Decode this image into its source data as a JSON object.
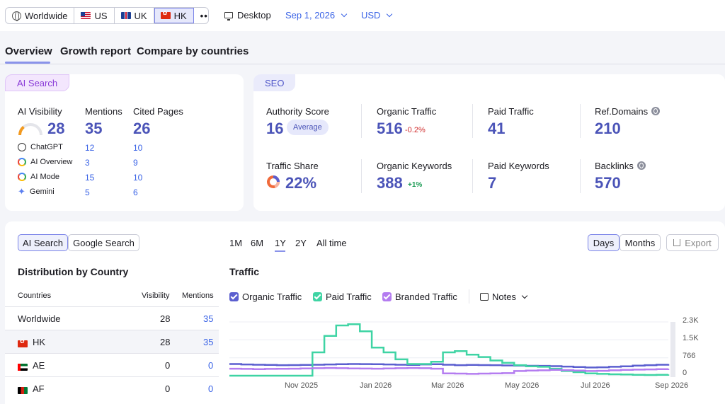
{
  "topbar": {
    "regions": [
      {
        "label": "Worldwide",
        "icon": "globe-icon"
      },
      {
        "label": "US",
        "icon": "us-flag-icon"
      },
      {
        "label": "UK",
        "icon": "uk-flag-icon"
      },
      {
        "label": "HK",
        "icon": "hk-flag-icon",
        "active": true
      }
    ],
    "more_label": "•••",
    "device_label": "Desktop",
    "date_label": "Sep 1, 2026",
    "currency_label": "USD"
  },
  "tabs": [
    "Overview",
    "Growth report",
    "Compare by countries"
  ],
  "ai_card": {
    "pill": "AI Search",
    "headers": {
      "visibility": "AI Visibility",
      "mentions": "Mentions",
      "cited": "Cited Pages"
    },
    "totals": {
      "visibility": "28",
      "mentions": "35",
      "cited": "26"
    },
    "visibility_gauge_fraction": 0.28,
    "rows": [
      {
        "name": "ChatGPT",
        "mentions": "12",
        "cited": "10",
        "icon": "chatgpt-icon"
      },
      {
        "name": "AI Overview",
        "mentions": "3",
        "cited": "9",
        "icon": "google-icon"
      },
      {
        "name": "AI Mode",
        "mentions": "15",
        "cited": "10",
        "icon": "google-icon"
      },
      {
        "name": "Gemini",
        "mentions": "5",
        "cited": "6",
        "icon": "gemini-icon"
      }
    ]
  },
  "seo_card": {
    "pill": "SEO",
    "authority": {
      "label": "Authority Score",
      "value": "16",
      "badge": "Average"
    },
    "organic_traffic": {
      "label": "Organic Traffic",
      "value": "516",
      "delta": "-0.2%"
    },
    "paid_traffic": {
      "label": "Paid Traffic",
      "value": "41"
    },
    "ref_domains": {
      "label": "Ref.Domains",
      "value": "210"
    },
    "traffic_share": {
      "label": "Traffic Share",
      "value": "22%"
    },
    "organic_keywords": {
      "label": "Organic Keywords",
      "value": "388",
      "delta": "+1%"
    },
    "paid_keywords": {
      "label": "Paid Keywords",
      "value": "7"
    },
    "backlinks": {
      "label": "Backlinks",
      "value": "570"
    }
  },
  "bottom": {
    "toggle": [
      "AI Search",
      "Google Search"
    ],
    "ranges": [
      "1M",
      "6M",
      "1Y",
      "2Y",
      "All time"
    ],
    "active_range": "1Y",
    "granularity": [
      "Days",
      "Months"
    ],
    "export_label": "Export",
    "distribution": {
      "title": "Distribution by Country",
      "headers": {
        "country": "Countries",
        "visibility": "Visibility",
        "mentions": "Mentions"
      },
      "rows": [
        {
          "country": "Worldwide",
          "visibility": "28",
          "mentions": "35",
          "flag": ""
        },
        {
          "country": "HK",
          "visibility": "28",
          "mentions": "35",
          "flag": "hk"
        },
        {
          "country": "AE",
          "visibility": "0",
          "mentions": "0",
          "flag": "ae"
        },
        {
          "country": "AF",
          "visibility": "0",
          "mentions": "0",
          "flag": "af"
        }
      ]
    },
    "traffic_title": "Traffic",
    "legend": [
      {
        "label": "Organic Traffic",
        "color": "#5b5fcf"
      },
      {
        "label": "Paid Traffic",
        "color": "#3fd4a4"
      },
      {
        "label": "Branded Traffic",
        "color": "#b47cf0"
      }
    ],
    "notes_label": "Notes"
  },
  "chart_data": {
    "type": "line",
    "x_ticks": [
      "Nov 2025",
      "Jan 2026",
      "Mar 2026",
      "May 2026",
      "Jul 2026",
      "Sep 2026"
    ],
    "y_ticks": [
      "2.3K",
      "1.5K",
      "766",
      "0"
    ],
    "ylim": [
      0,
      2300
    ],
    "series": [
      {
        "name": "Organic Traffic",
        "color": "#5b5fcf",
        "values": [
          500,
          480,
          470,
          460,
          450,
          455,
          460,
          470,
          480,
          490,
          500,
          495,
          490,
          480,
          470,
          460,
          480,
          490,
          470,
          450,
          460,
          455,
          450,
          440,
          430,
          425,
          420,
          410,
          390,
          370,
          350,
          360,
          380,
          400,
          430,
          450,
          470,
          500
        ]
      },
      {
        "name": "Paid Traffic",
        "color": "#3fd4a4",
        "values": [
          0,
          0,
          0,
          0,
          0,
          0,
          0,
          1000,
          1700,
          2150,
          2200,
          1900,
          1200,
          1000,
          700,
          500,
          500,
          600,
          1000,
          1050,
          900,
          800,
          650,
          550,
          450,
          400,
          380,
          300,
          200,
          150,
          100,
          80,
          60,
          50,
          40,
          30,
          40,
          50
        ]
      },
      {
        "name": "Branded Traffic",
        "color": "#b47cf0",
        "values": [
          300,
          290,
          280,
          290,
          295,
          300,
          310,
          320,
          330,
          320,
          310,
          305,
          300,
          310,
          320,
          330,
          320,
          300,
          100,
          90,
          80,
          90,
          100,
          110,
          200,
          220,
          230,
          250,
          240,
          220,
          200,
          210,
          230,
          250,
          260,
          270,
          280,
          300
        ]
      }
    ]
  }
}
